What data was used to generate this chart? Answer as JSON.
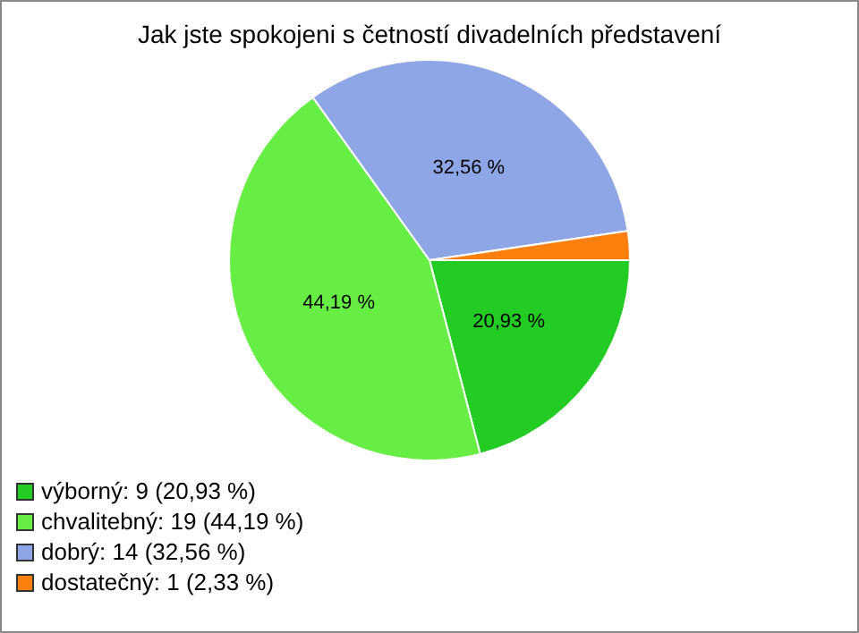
{
  "chart_data": {
    "type": "pie",
    "title": "Jak jste spokojeni s četností divadelních představení",
    "categories": [
      "výborný: 9 (20,93 %)",
      "chvalitebný: 19 (44,19 %)",
      "dobrý: 14 (32,56 %)",
      "dostatečný: 1 (2,33 %)"
    ],
    "values": [
      20.93,
      44.19,
      32.56,
      2.33
    ],
    "colors": [
      "#22cc22",
      "#66ee44",
      "#8fa6e6",
      "#ff7f0e"
    ],
    "value_labels": [
      "20,93 %",
      "44,19 %",
      "32,56 %",
      null
    ],
    "legend": "bottom left"
  }
}
